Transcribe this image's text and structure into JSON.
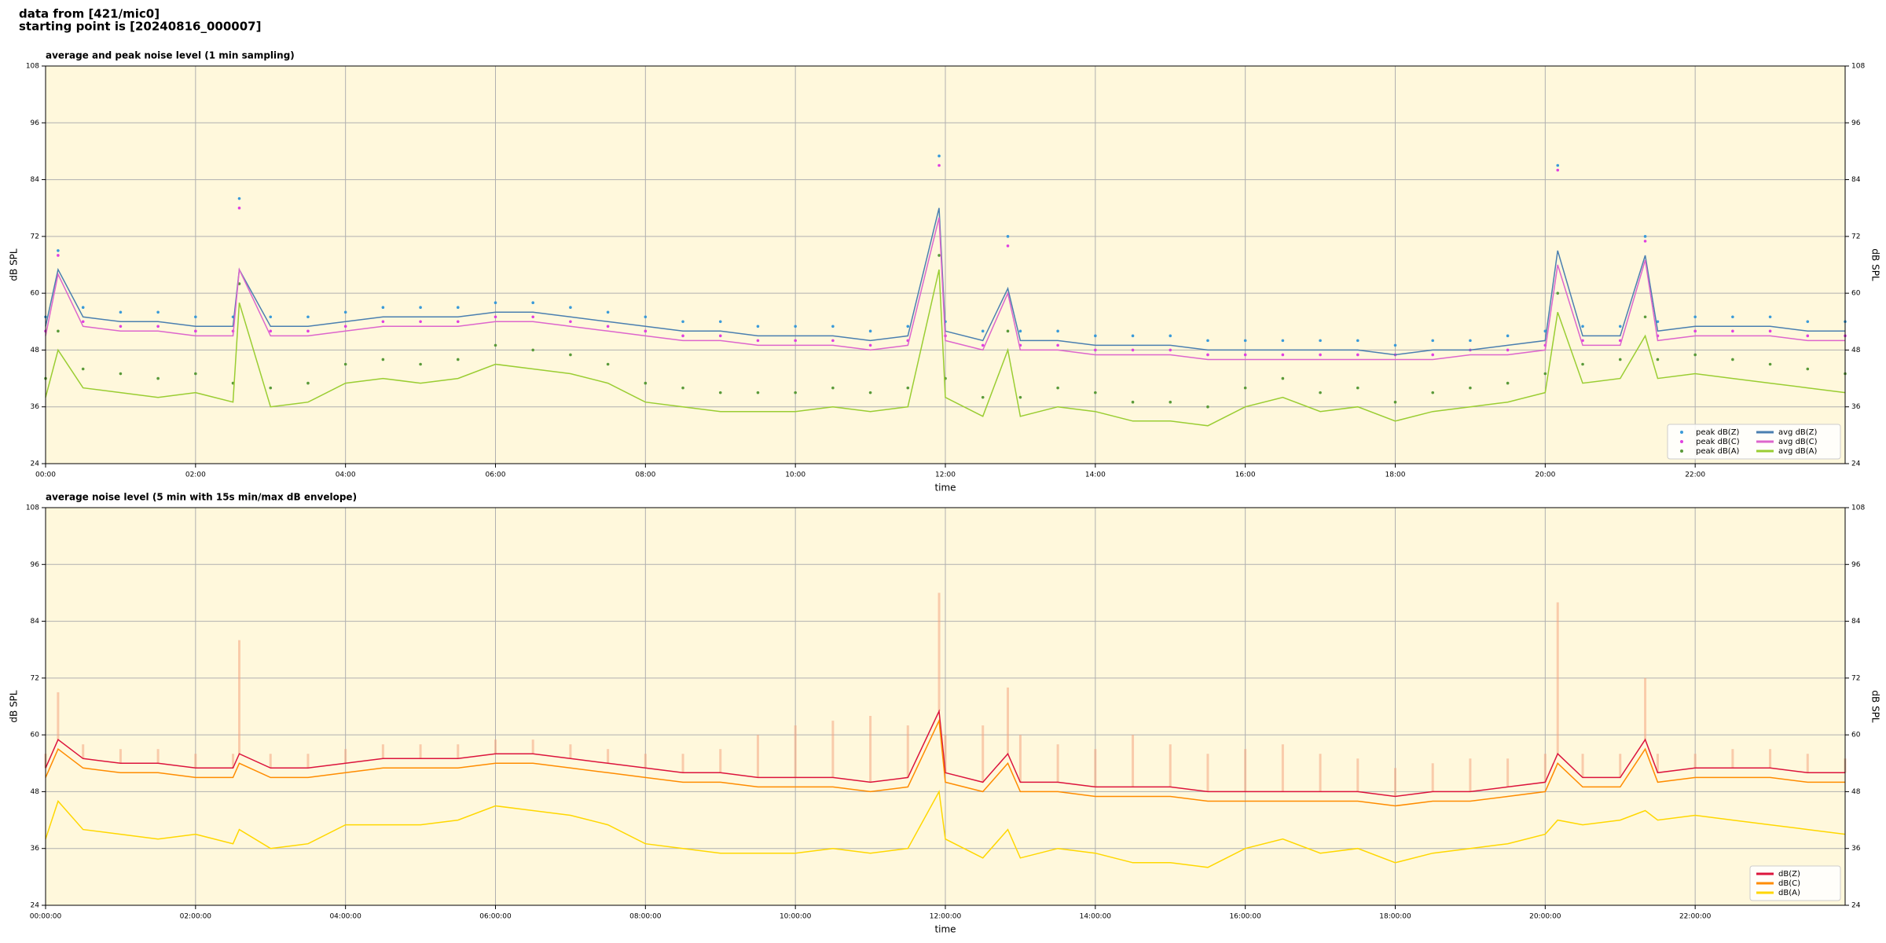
{
  "header": {
    "lines": [
      "data from [421/mic0]",
      "starting point is [20240816_000007]"
    ]
  },
  "chart_data": [
    {
      "type": "line",
      "title": "average and peak noise level (1 min sampling)",
      "xlabel": "time",
      "ylabel": "dB SPL",
      "y2label": "dB SPL",
      "x": [
        0,
        10,
        30,
        60,
        90,
        120,
        150,
        155,
        180,
        210,
        240,
        270,
        300,
        330,
        360,
        390,
        420,
        450,
        480,
        510,
        540,
        570,
        600,
        630,
        660,
        690,
        715,
        720,
        750,
        770,
        780,
        810,
        840,
        870,
        900,
        930,
        960,
        990,
        1020,
        1050,
        1080,
        1110,
        1140,
        1170,
        1200,
        1210,
        1230,
        1260,
        1280,
        1290,
        1320,
        1350,
        1380,
        1410,
        1440
      ],
      "xlim": [
        0,
        1440
      ],
      "xticks": [
        {
          "value": 0,
          "label": "00:00"
        },
        {
          "value": 120,
          "label": "02:00"
        },
        {
          "value": 240,
          "label": "04:00"
        },
        {
          "value": 360,
          "label": "06:00"
        },
        {
          "value": 480,
          "label": "08:00"
        },
        {
          "value": 600,
          "label": "10:00"
        },
        {
          "value": 720,
          "label": "12:00"
        },
        {
          "value": 840,
          "label": "14:00"
        },
        {
          "value": 960,
          "label": "16:00"
        },
        {
          "value": 1080,
          "label": "18:00"
        },
        {
          "value": 1200,
          "label": "20:00"
        },
        {
          "value": 1320,
          "label": "22:00"
        }
      ],
      "ylim": [
        24,
        108
      ],
      "yticks": [
        24,
        36,
        48,
        60,
        72,
        84,
        96,
        108
      ],
      "grid": true,
      "background": "#fff8dc",
      "legend": "lower right",
      "legend_columns": 2,
      "series": [
        {
          "name": "peak dB(Z)",
          "style": "dots",
          "color": "#3a9ad9",
          "values": [
            55,
            69,
            57,
            56,
            56,
            55,
            55,
            80,
            55,
            55,
            56,
            57,
            57,
            57,
            58,
            58,
            57,
            56,
            55,
            54,
            54,
            53,
            53,
            53,
            52,
            53,
            89,
            54,
            52,
            72,
            52,
            52,
            51,
            51,
            51,
            50,
            50,
            50,
            50,
            50,
            49,
            50,
            50,
            51,
            52,
            87,
            53,
            53,
            72,
            54,
            55,
            55,
            55,
            54,
            54
          ]
        },
        {
          "name": "peak dB(C)",
          "style": "dots",
          "color": "#e040e0",
          "values": [
            52,
            68,
            54,
            53,
            53,
            52,
            52,
            78,
            52,
            52,
            53,
            54,
            54,
            54,
            55,
            55,
            54,
            53,
            52,
            51,
            51,
            50,
            50,
            50,
            49,
            50,
            87,
            51,
            49,
            70,
            49,
            49,
            48,
            48,
            48,
            47,
            47,
            47,
            47,
            47,
            47,
            47,
            48,
            48,
            49,
            86,
            50,
            50,
            71,
            51,
            52,
            52,
            52,
            51,
            51
          ]
        },
        {
          "name": "peak dB(A)",
          "style": "dots",
          "color": "#5a9a3a",
          "values": [
            42,
            52,
            44,
            43,
            42,
            43,
            41,
            62,
            40,
            41,
            45,
            46,
            45,
            46,
            49,
            48,
            47,
            45,
            41,
            40,
            39,
            39,
            39,
            40,
            39,
            40,
            68,
            42,
            38,
            52,
            38,
            40,
            39,
            37,
            37,
            36,
            40,
            42,
            39,
            40,
            37,
            39,
            40,
            41,
            43,
            60,
            45,
            46,
            55,
            46,
            47,
            46,
            45,
            44,
            43
          ]
        },
        {
          "name": "avg dB(Z)",
          "style": "line",
          "color": "#4a7fb0",
          "values": [
            53,
            65,
            55,
            54,
            54,
            53,
            53,
            65,
            53,
            53,
            54,
            55,
            55,
            55,
            56,
            56,
            55,
            54,
            53,
            52,
            52,
            51,
            51,
            51,
            50,
            51,
            78,
            52,
            50,
            61,
            50,
            50,
            49,
            49,
            49,
            48,
            48,
            48,
            48,
            48,
            47,
            48,
            48,
            49,
            50,
            69,
            51,
            51,
            68,
            52,
            53,
            53,
            53,
            52,
            52
          ]
        },
        {
          "name": "avg dB(C)",
          "style": "line",
          "color": "#dd66cc",
          "values": [
            51,
            64,
            53,
            52,
            52,
            51,
            51,
            65,
            51,
            51,
            52,
            53,
            53,
            53,
            54,
            54,
            53,
            52,
            51,
            50,
            50,
            49,
            49,
            49,
            48,
            49,
            76,
            50,
            48,
            60,
            48,
            48,
            47,
            47,
            47,
            46,
            46,
            46,
            46,
            46,
            46,
            46,
            47,
            47,
            48,
            66,
            49,
            49,
            67,
            50,
            51,
            51,
            51,
            50,
            50
          ]
        },
        {
          "name": "avg dB(A)",
          "style": "line",
          "color": "#9acd32",
          "values": [
            38,
            48,
            40,
            39,
            38,
            39,
            37,
            58,
            36,
            37,
            41,
            42,
            41,
            42,
            45,
            44,
            43,
            41,
            37,
            36,
            35,
            35,
            35,
            36,
            35,
            36,
            65,
            38,
            34,
            48,
            34,
            36,
            35,
            33,
            33,
            32,
            36,
            38,
            35,
            36,
            33,
            35,
            36,
            37,
            39,
            56,
            41,
            42,
            51,
            42,
            43,
            42,
            41,
            40,
            39
          ]
        }
      ]
    },
    {
      "type": "line",
      "title": "average noise level (5 min with 15s min/max dB envelope)",
      "xlabel": "time",
      "ylabel": "dB SPL",
      "y2label": "dB SPL",
      "x": [
        0,
        10,
        30,
        60,
        90,
        120,
        150,
        155,
        180,
        210,
        240,
        270,
        300,
        330,
        360,
        390,
        420,
        450,
        480,
        510,
        540,
        570,
        600,
        630,
        660,
        690,
        715,
        720,
        750,
        770,
        780,
        810,
        840,
        870,
        900,
        930,
        960,
        990,
        1020,
        1050,
        1080,
        1110,
        1140,
        1170,
        1200,
        1210,
        1230,
        1260,
        1280,
        1290,
        1320,
        1350,
        1380,
        1410,
        1440
      ],
      "xlim": [
        0,
        1440
      ],
      "xticks": [
        {
          "value": 0,
          "label": "00:00:00"
        },
        {
          "value": 120,
          "label": "02:00:00"
        },
        {
          "value": 240,
          "label": "04:00:00"
        },
        {
          "value": 360,
          "label": "06:00:00"
        },
        {
          "value": 480,
          "label": "08:00:00"
        },
        {
          "value": 600,
          "label": "10:00:00"
        },
        {
          "value": 720,
          "label": "12:00:00"
        },
        {
          "value": 840,
          "label": "14:00:00"
        },
        {
          "value": 960,
          "label": "16:00:00"
        },
        {
          "value": 1080,
          "label": "18:00:00"
        },
        {
          "value": 1200,
          "label": "20:00:00"
        },
        {
          "value": 1320,
          "label": "22:00:00"
        }
      ],
      "ylim": [
        24,
        108
      ],
      "yticks": [
        24,
        36,
        48,
        60,
        72,
        84,
        96,
        108
      ],
      "grid": true,
      "background": "#fff8dc",
      "legend": "lower right",
      "legend_columns": 1,
      "envelope": {
        "color": "#f4a582",
        "values": [
          56,
          69,
          58,
          57,
          57,
          56,
          56,
          80,
          56,
          56,
          57,
          58,
          58,
          58,
          59,
          59,
          58,
          57,
          56,
          56,
          57,
          60,
          62,
          63,
          64,
          62,
          90,
          60,
          62,
          70,
          60,
          58,
          57,
          60,
          58,
          56,
          57,
          58,
          56,
          55,
          53,
          54,
          55,
          55,
          56,
          88,
          56,
          56,
          72,
          56,
          56,
          57,
          57,
          56,
          55
        ]
      },
      "series": [
        {
          "name": "dB(Z)",
          "style": "line",
          "color": "#dc143c",
          "values": [
            53,
            59,
            55,
            54,
            54,
            53,
            53,
            56,
            53,
            53,
            54,
            55,
            55,
            55,
            56,
            56,
            55,
            54,
            53,
            52,
            52,
            51,
            51,
            51,
            50,
            51,
            65,
            52,
            50,
            56,
            50,
            50,
            49,
            49,
            49,
            48,
            48,
            48,
            48,
            48,
            47,
            48,
            48,
            49,
            50,
            56,
            51,
            51,
            59,
            52,
            53,
            53,
            53,
            52,
            52
          ]
        },
        {
          "name": "dB(C)",
          "style": "line",
          "color": "#ff8c00",
          "values": [
            51,
            57,
            53,
            52,
            52,
            51,
            51,
            54,
            51,
            51,
            52,
            53,
            53,
            53,
            54,
            54,
            53,
            52,
            51,
            50,
            50,
            49,
            49,
            49,
            48,
            49,
            63,
            50,
            48,
            54,
            48,
            48,
            47,
            47,
            47,
            46,
            46,
            46,
            46,
            46,
            45,
            46,
            46,
            47,
            48,
            54,
            49,
            49,
            57,
            50,
            51,
            51,
            51,
            50,
            50
          ]
        },
        {
          "name": "dB(A)",
          "style": "line",
          "color": "#ffd700",
          "values": [
            38,
            46,
            40,
            39,
            38,
            39,
            37,
            40,
            36,
            37,
            41,
            41,
            41,
            42,
            45,
            44,
            43,
            41,
            37,
            36,
            35,
            35,
            35,
            36,
            35,
            36,
            48,
            38,
            34,
            40,
            34,
            36,
            35,
            33,
            33,
            32,
            36,
            38,
            35,
            36,
            33,
            35,
            36,
            37,
            39,
            42,
            41,
            42,
            44,
            42,
            43,
            42,
            41,
            40,
            39
          ]
        }
      ]
    }
  ]
}
